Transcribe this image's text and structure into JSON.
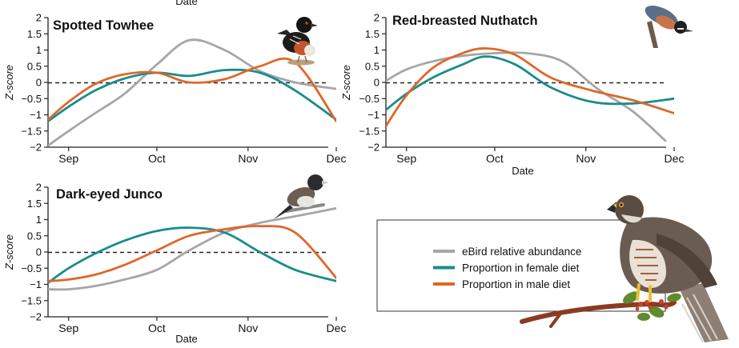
{
  "colors": {
    "ebird": "#a6a6a6",
    "female": "#1a8c8c",
    "male": "#e0662a",
    "axis": "#222222"
  },
  "legend": {
    "items": [
      {
        "label": "eBird relative abundance",
        "color": "#a6a6a6"
      },
      {
        "label": "Proportion in female diet",
        "color": "#1a8c8c"
      },
      {
        "label": "Proportion in male diet",
        "color": "#e0662a"
      }
    ]
  },
  "icons": [
    "towhee-photo",
    "nuthatch-photo",
    "junco-photo",
    "hawk-photo"
  ],
  "chart_data": [
    {
      "type": "line",
      "title": "Spotted Towhee",
      "xlabel": "Date",
      "ylabel": "Z-score",
      "ylim": [
        -2,
        2
      ],
      "xlim": [
        "Aug 25",
        "Dec 1"
      ],
      "xticks": [
        {
          "x": "Sep 1",
          "label": "Sep"
        },
        {
          "x": "Oct 1",
          "label": "Oct"
        },
        {
          "x": "Nov 1",
          "label": "Nov"
        },
        {
          "x": "Dec 1",
          "label": "Dec"
        }
      ],
      "yticks": [
        2,
        1.5,
        1,
        0.5,
        0,
        -0.5,
        -1,
        -1.5,
        -2
      ],
      "reference_line": {
        "y": 0,
        "style": "dashed"
      },
      "series": [
        {
          "name": "eBird relative abundance",
          "color": "#a6a6a6",
          "x": [
            "Aug 25",
            "Sep 1",
            "Sep 10",
            "Sep 20",
            "Oct 1",
            "Oct 12",
            "Oct 24",
            "Nov 5",
            "Nov 17",
            "Dec 1"
          ],
          "y": [
            -1.95,
            -1.5,
            -0.95,
            -0.35,
            0.55,
            1.3,
            1.0,
            0.35,
            0.0,
            -0.2
          ]
        },
        {
          "name": "Proportion in female diet",
          "color": "#1a8c8c",
          "x": [
            "Aug 25",
            "Sep 1",
            "Sep 10",
            "Sep 20",
            "Oct 1",
            "Oct 12",
            "Oct 24",
            "Nov 5",
            "Nov 17",
            "Dec 1"
          ],
          "y": [
            -1.2,
            -0.75,
            -0.25,
            0.12,
            0.3,
            0.2,
            0.38,
            0.3,
            -0.25,
            -1.15
          ]
        },
        {
          "name": "Proportion in male diet",
          "color": "#e0662a",
          "x": [
            "Aug 25",
            "Sep 1",
            "Sep 10",
            "Sep 20",
            "Oct 1",
            "Oct 12",
            "Oct 24",
            "Nov 5",
            "Nov 17",
            "Dec 1"
          ],
          "y": [
            -1.15,
            -0.6,
            -0.05,
            0.25,
            0.3,
            0.0,
            0.1,
            0.5,
            0.62,
            -1.2
          ]
        }
      ]
    },
    {
      "type": "line",
      "title": "Red-breasted Nuthatch",
      "xlabel": "Date",
      "ylabel": "Z-score",
      "ylim": [
        -2,
        2
      ],
      "xlim": [
        "Aug 25",
        "Dec 1"
      ],
      "xticks": [
        {
          "x": "Sep 1",
          "label": "Sep"
        },
        {
          "x": "Oct 1",
          "label": "Oct"
        },
        {
          "x": "Nov 1",
          "label": "Nov"
        },
        {
          "x": "Dec 1",
          "label": "Dec"
        }
      ],
      "yticks": [
        2,
        1.5,
        1,
        0.5,
        0,
        -0.5,
        -1,
        -1.5,
        -2
      ],
      "reference_line": {
        "y": 0,
        "style": "dashed"
      },
      "series": [
        {
          "name": "eBird relative abundance",
          "color": "#a6a6a6",
          "x": [
            "Aug 25",
            "Sep 1",
            "Sep 10",
            "Sep 20",
            "Oct 1",
            "Oct 12",
            "Oct 24",
            "Nov 5",
            "Nov 17",
            "Nov 28"
          ],
          "y": [
            0.05,
            0.4,
            0.65,
            0.82,
            0.9,
            0.9,
            0.65,
            -0.2,
            -0.9,
            -1.8
          ]
        },
        {
          "name": "Proportion in female diet",
          "color": "#1a8c8c",
          "x": [
            "Aug 25",
            "Sep 1",
            "Sep 10",
            "Sep 20",
            "Sep 28",
            "Oct 8",
            "Oct 20",
            "Nov 3",
            "Nov 17",
            "Dec 1"
          ],
          "y": [
            -0.85,
            -0.35,
            0.15,
            0.55,
            0.8,
            0.55,
            -0.15,
            -0.6,
            -0.65,
            -0.5
          ]
        },
        {
          "name": "Proportion in male diet",
          "color": "#e0662a",
          "x": [
            "Aug 25",
            "Sep 1",
            "Sep 10",
            "Sep 20",
            "Sep 28",
            "Oct 8",
            "Oct 20",
            "Nov 3",
            "Nov 17",
            "Dec 1"
          ],
          "y": [
            -1.35,
            -0.4,
            0.45,
            0.9,
            1.05,
            0.85,
            0.15,
            -0.25,
            -0.55,
            -0.95
          ]
        }
      ]
    },
    {
      "type": "line",
      "title": "Dark-eyed Junco",
      "xlabel": "Date",
      "ylabel": "Z-score",
      "ylim": [
        -2,
        2
      ],
      "xlim": [
        "Aug 25",
        "Dec 1"
      ],
      "xticks": [
        {
          "x": "Sep 1",
          "label": "Sep"
        },
        {
          "x": "Oct 1",
          "label": "Oct"
        },
        {
          "x": "Nov 1",
          "label": "Nov"
        },
        {
          "x": "Dec 1",
          "label": "Dec"
        }
      ],
      "yticks": [
        2,
        1.5,
        1,
        0.5,
        0,
        -0.5,
        -1,
        -1.5,
        -2
      ],
      "reference_line": {
        "y": 0,
        "style": "dashed"
      },
      "series": [
        {
          "name": "eBird relative abundance",
          "color": "#a6a6a6",
          "x": [
            "Aug 25",
            "Sep 1",
            "Sep 10",
            "Sep 20",
            "Oct 1",
            "Oct 12",
            "Oct 24",
            "Nov 5",
            "Nov 17",
            "Dec 1"
          ],
          "y": [
            -1.15,
            -1.15,
            -1.05,
            -0.85,
            -0.55,
            0.05,
            0.6,
            0.9,
            1.1,
            1.35
          ]
        },
        {
          "name": "Proportion in female diet",
          "color": "#1a8c8c",
          "x": [
            "Aug 25",
            "Sep 1",
            "Sep 10",
            "Sep 20",
            "Oct 1",
            "Oct 12",
            "Oct 24",
            "Nov 5",
            "Nov 17",
            "Dec 1"
          ],
          "y": [
            -0.95,
            -0.5,
            -0.05,
            0.35,
            0.65,
            0.75,
            0.6,
            0.0,
            -0.55,
            -0.9
          ]
        },
        {
          "name": "Proportion in male diet",
          "color": "#e0662a",
          "x": [
            "Aug 25",
            "Sep 1",
            "Sep 10",
            "Sep 20",
            "Oct 1",
            "Oct 12",
            "Oct 24",
            "Nov 5",
            "Nov 17",
            "Dec 1"
          ],
          "y": [
            -0.9,
            -0.85,
            -0.7,
            -0.4,
            0.05,
            0.5,
            0.7,
            0.8,
            0.6,
            -0.8
          ]
        }
      ]
    }
  ]
}
